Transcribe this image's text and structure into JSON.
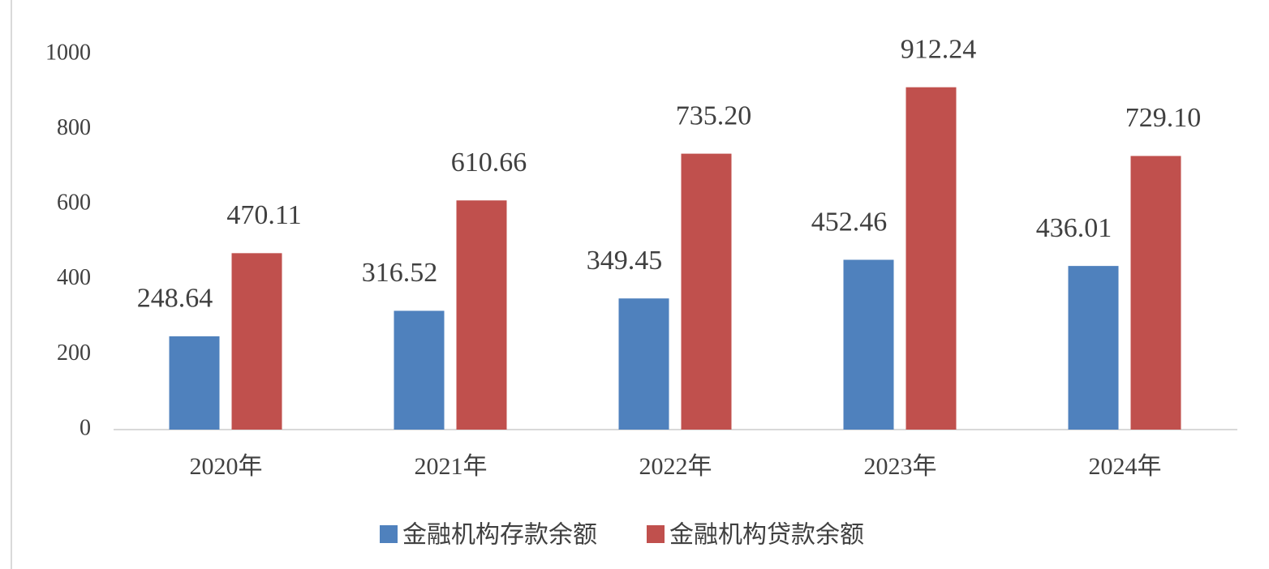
{
  "chart_data": {
    "type": "bar",
    "categories": [
      "2020年",
      "2021年",
      "2022年",
      "2023年",
      "2024年"
    ],
    "series": [
      {
        "name": "金融机构存款余额",
        "color": "#4f81bd",
        "values": [
          248.64,
          316.52,
          349.45,
          452.46,
          436.01
        ],
        "value_labels": [
          "248.64",
          "316.52",
          "349.45",
          "452.46",
          "436.01"
        ]
      },
      {
        "name": "金融机构贷款余额",
        "color": "#c0504d",
        "values": [
          470.11,
          610.66,
          735.2,
          912.24,
          729.1
        ],
        "value_labels": [
          "470.11",
          "610.66",
          "735.20",
          "912.24",
          "729.10"
        ]
      }
    ],
    "ylim": [
      0,
      1000
    ],
    "yticks": [
      0,
      200,
      400,
      600,
      800,
      1000
    ],
    "grid": false,
    "legend": "bottom"
  }
}
